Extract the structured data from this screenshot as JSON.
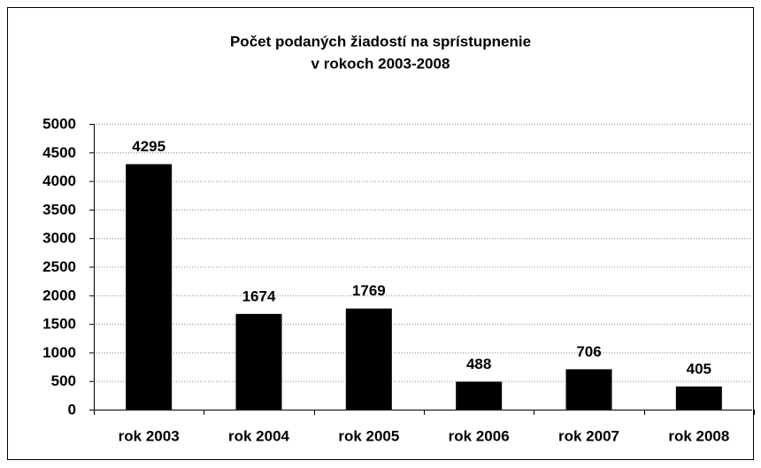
{
  "chart_data": {
    "type": "bar",
    "title": [
      "Počet podaných žiadostí na sprístupnenie",
      "v rokoch 2003-2008"
    ],
    "categories": [
      "rok 2003",
      "rok 2004",
      "rok 2005",
      "rok 2006",
      "rok 2007",
      "rok 2008"
    ],
    "values": [
      4295,
      1674,
      1769,
      488,
      706,
      405
    ],
    "color": "#000000",
    "ylim": [
      0,
      5000
    ],
    "yticks": [
      0,
      500,
      1000,
      1500,
      2000,
      2500,
      3000,
      3500,
      4000,
      4500,
      5000
    ],
    "grid": true
  }
}
